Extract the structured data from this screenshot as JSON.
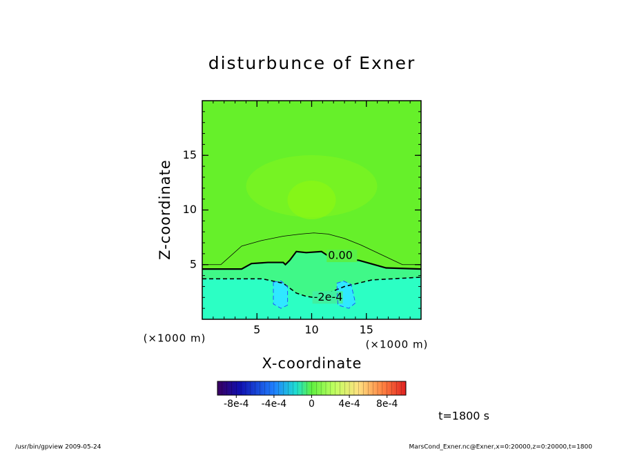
{
  "chart_data": {
    "type": "contour",
    "title": "disturbunce of Exner",
    "xlabel": "X-coordinate",
    "ylabel": "Z-coordinate",
    "xunit": "(×1000 m)",
    "yunit": "(×1000 m)",
    "xlim": [
      0,
      20
    ],
    "ylim": [
      0,
      20
    ],
    "xticks": [
      5,
      10,
      15
    ],
    "yticks": [
      5,
      10,
      15
    ],
    "background": "#66f02a",
    "contours": [
      {
        "level": 0.0001,
        "color": "#000000",
        "dashed": false,
        "width": 0.8,
        "x": [
          0,
          1.7,
          3.6,
          5.4,
          7.4,
          9,
          10.2,
          11.5,
          13,
          14.5,
          16.4,
          18.3,
          20
        ],
        "y": [
          5,
          5,
          6.7,
          7.2,
          7.6,
          7.8,
          7.9,
          7.8,
          7.4,
          6.8,
          5.9,
          5,
          5
        ]
      },
      {
        "level": 0,
        "label": "0.00",
        "color": "#000000",
        "dashed": false,
        "width": 2.2,
        "fill_below": "#40f888",
        "x": [
          0,
          2,
          3.6,
          4.5,
          6,
          7.4,
          7.6,
          8,
          8.6,
          9.5,
          10.9,
          11.5,
          12,
          14.3,
          16.8,
          20
        ],
        "y": [
          4.6,
          4.6,
          4.6,
          5.1,
          5.2,
          5.2,
          5,
          5.4,
          6.2,
          6.1,
          6.2,
          5.8,
          5.6,
          5.4,
          4.7,
          4.6
        ]
      },
      {
        "level": -0.0002,
        "label": "-2e-4",
        "color": "#000000",
        "dashed": true,
        "width": 1.6,
        "fill_below": "#2cffc4",
        "x": [
          0,
          3,
          5.5,
          7.4,
          8.6,
          9.5,
          10.2,
          11.5,
          13,
          15.5,
          20
        ],
        "y": [
          3.7,
          3.7,
          3.7,
          3.3,
          2.4,
          2.1,
          2.0,
          2.4,
          3.0,
          3.6,
          3.85
        ]
      },
      {
        "level": -0.0004,
        "color": "#2040ff",
        "dashed": true,
        "width": 0.9,
        "fill_below": "#30e8ff",
        "x": [
          6.5,
          7.2,
          7.8,
          7.8,
          7.2,
          6.5,
          6.5
        ],
        "y": [
          3.4,
          3.5,
          3.0,
          1.3,
          1.0,
          1.4,
          3.4
        ]
      },
      {
        "level": -0.0004,
        "color": "#2040ff",
        "dashed": true,
        "width": 0.9,
        "fill_below": "#30e8ff",
        "x": [
          12.3,
          12.9,
          13.6,
          14.0,
          13.4,
          12.4,
          12.3
        ],
        "y": [
          3.3,
          3.5,
          3.2,
          1.5,
          1.0,
          1.3,
          3.3
        ]
      }
    ],
    "colorbar": {
      "lim": [
        -0.001,
        0.001
      ],
      "ticks": [
        {
          "value": -0.0008,
          "label": "-8e-4"
        },
        {
          "value": -0.0004,
          "label": "-4e-4"
        },
        0,
        {
          "value": 0.0004,
          "label": "4e-4"
        },
        {
          "value": 0.0008,
          "label": "8e-4"
        }
      ]
    },
    "annotation": "t=1800 s"
  },
  "footer": {
    "left": "/usr/bin/gpview   2009-05-24",
    "right": "MarsCond_Exner.nc@Exner,x=0:20000,z=0:20000,t=1800"
  }
}
